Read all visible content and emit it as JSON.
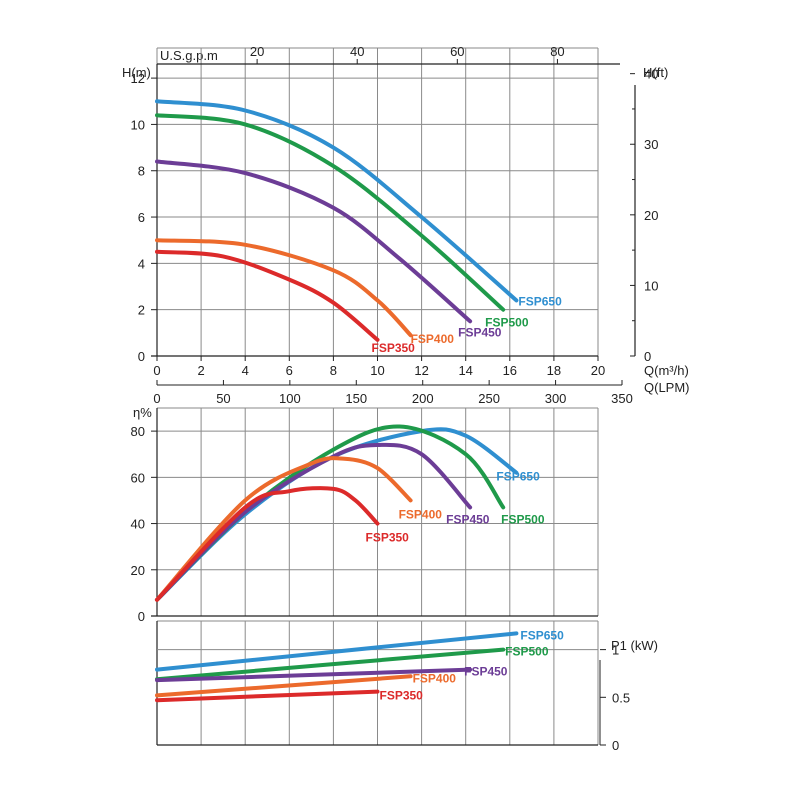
{
  "colors": {
    "FSP650": "#2f8fd0",
    "FSP500": "#1f9a4a",
    "FSP450": "#6c3d96",
    "FSP400": "#ec6a2c",
    "FSP350": "#dc2a2a",
    "grid": "#8a8a8a",
    "axis": "#222222"
  },
  "chart_data": [
    {
      "type": "line",
      "id": "head",
      "ylabel": "H(m)",
      "ylabel_right": "H(ft)",
      "xlabel": "Q(m³/h)",
      "xlabel_lpm": "Q(LPM)",
      "xlabel_top": "U.S.g.p.m",
      "xlim": [
        0,
        20
      ],
      "ylim": [
        0,
        13.3
      ],
      "x_ticks": [
        "0",
        "2",
        "4",
        "6",
        "8",
        "10",
        "12",
        "14",
        "16",
        "18",
        "20"
      ],
      "y_ticks": [
        "0",
        "2",
        "4",
        "6",
        "8",
        "10",
        "12"
      ],
      "lpm_ticks": [
        "0",
        "50",
        "100",
        "150",
        "200",
        "250",
        "300",
        "350"
      ],
      "gpm_ticks": [
        "20",
        "40",
        "60",
        "80"
      ],
      "ft_ticks": [
        "0",
        "10",
        "20",
        "30",
        "40"
      ],
      "grid": true,
      "series": [
        {
          "name": "FSP650",
          "x": [
            0,
            4,
            8,
            12,
            16.3
          ],
          "y": [
            11.0,
            10.6,
            9.0,
            6.0,
            2.4
          ]
        },
        {
          "name": "FSP500",
          "x": [
            0,
            4,
            8,
            12,
            15.7
          ],
          "y": [
            10.4,
            10.0,
            8.2,
            5.2,
            2.0
          ]
        },
        {
          "name": "FSP450",
          "x": [
            0,
            4,
            8,
            11,
            14.2
          ],
          "y": [
            8.4,
            7.9,
            6.4,
            4.2,
            1.5
          ]
        },
        {
          "name": "FSP400",
          "x": [
            0,
            4,
            8,
            10,
            11.5
          ],
          "y": [
            5.0,
            4.8,
            3.7,
            2.4,
            0.9
          ]
        },
        {
          "name": "FSP350",
          "x": [
            0,
            3,
            6,
            8,
            10
          ],
          "y": [
            4.5,
            4.3,
            3.3,
            2.3,
            0.7
          ]
        }
      ]
    },
    {
      "type": "line",
      "id": "efficiency",
      "ylabel": "η%",
      "xlim": [
        0,
        20
      ],
      "ylim": [
        0,
        90
      ],
      "y_ticks": [
        "0",
        "20",
        "40",
        "60",
        "80"
      ],
      "grid": true,
      "series": [
        {
          "name": "FSP650",
          "x": [
            0,
            4,
            8,
            12,
            14,
            16.3
          ],
          "y": [
            7,
            44,
            69,
            80,
            78,
            62
          ]
        },
        {
          "name": "FSP500",
          "x": [
            0,
            4,
            8,
            11,
            14,
            15.7
          ],
          "y": [
            7,
            45,
            72,
            82,
            70,
            47
          ]
        },
        {
          "name": "FSP450",
          "x": [
            0,
            4,
            8,
            10,
            12,
            14.2
          ],
          "y": [
            7,
            45,
            69,
            74,
            70,
            47
          ]
        },
        {
          "name": "FSP400",
          "x": [
            0,
            4,
            7,
            8.5,
            10,
            11.5
          ],
          "y": [
            7,
            50,
            66,
            68,
            64,
            50
          ]
        },
        {
          "name": "FSP350",
          "x": [
            0,
            4,
            6,
            8,
            9,
            10
          ],
          "y": [
            7,
            47,
            54,
            55,
            50,
            40
          ]
        }
      ]
    },
    {
      "type": "line",
      "id": "power",
      "ylabel": "P1 (kW)",
      "xlim": [
        0,
        20
      ],
      "ylim": [
        0,
        1.3
      ],
      "y_ticks": [
        "0",
        "0.5",
        "1"
      ],
      "grid": true,
      "series": [
        {
          "name": "FSP650",
          "x": [
            0,
            16.3
          ],
          "y": [
            0.79,
            1.17
          ]
        },
        {
          "name": "FSP500",
          "x": [
            0,
            15.7
          ],
          "y": [
            0.69,
            1.0
          ]
        },
        {
          "name": "FSP450",
          "x": [
            0,
            14.2
          ],
          "y": [
            0.68,
            0.79
          ]
        },
        {
          "name": "FSP400",
          "x": [
            0,
            11.5
          ],
          "y": [
            0.52,
            0.72
          ]
        },
        {
          "name": "FSP350",
          "x": [
            0,
            10
          ],
          "y": [
            0.47,
            0.56
          ]
        }
      ]
    }
  ]
}
